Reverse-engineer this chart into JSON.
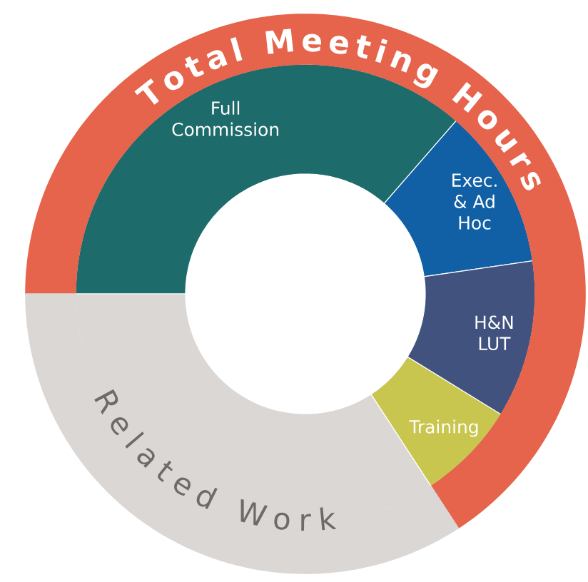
{
  "chart_data": {
    "type": "donut",
    "categories": [
      "Full Commission",
      "Exec. & Ad Hoc",
      "H&N LUT",
      "Training",
      "Total Meeting Hours",
      "Related Work"
    ],
    "colors": [
      "#1e6b6b",
      "#1160a5",
      "#41527f",
      "#c9c650",
      "#e5644b",
      "#dad7d4"
    ],
    "series": [
      {
        "values": [
          36.4,
          11.3,
          11.1,
          7.0,
          null,
          34.2
        ]
      },
      {
        "values": [
          null,
          null,
          null,
          null,
          65.8,
          34.2
        ]
      }
    ]
  }
}
